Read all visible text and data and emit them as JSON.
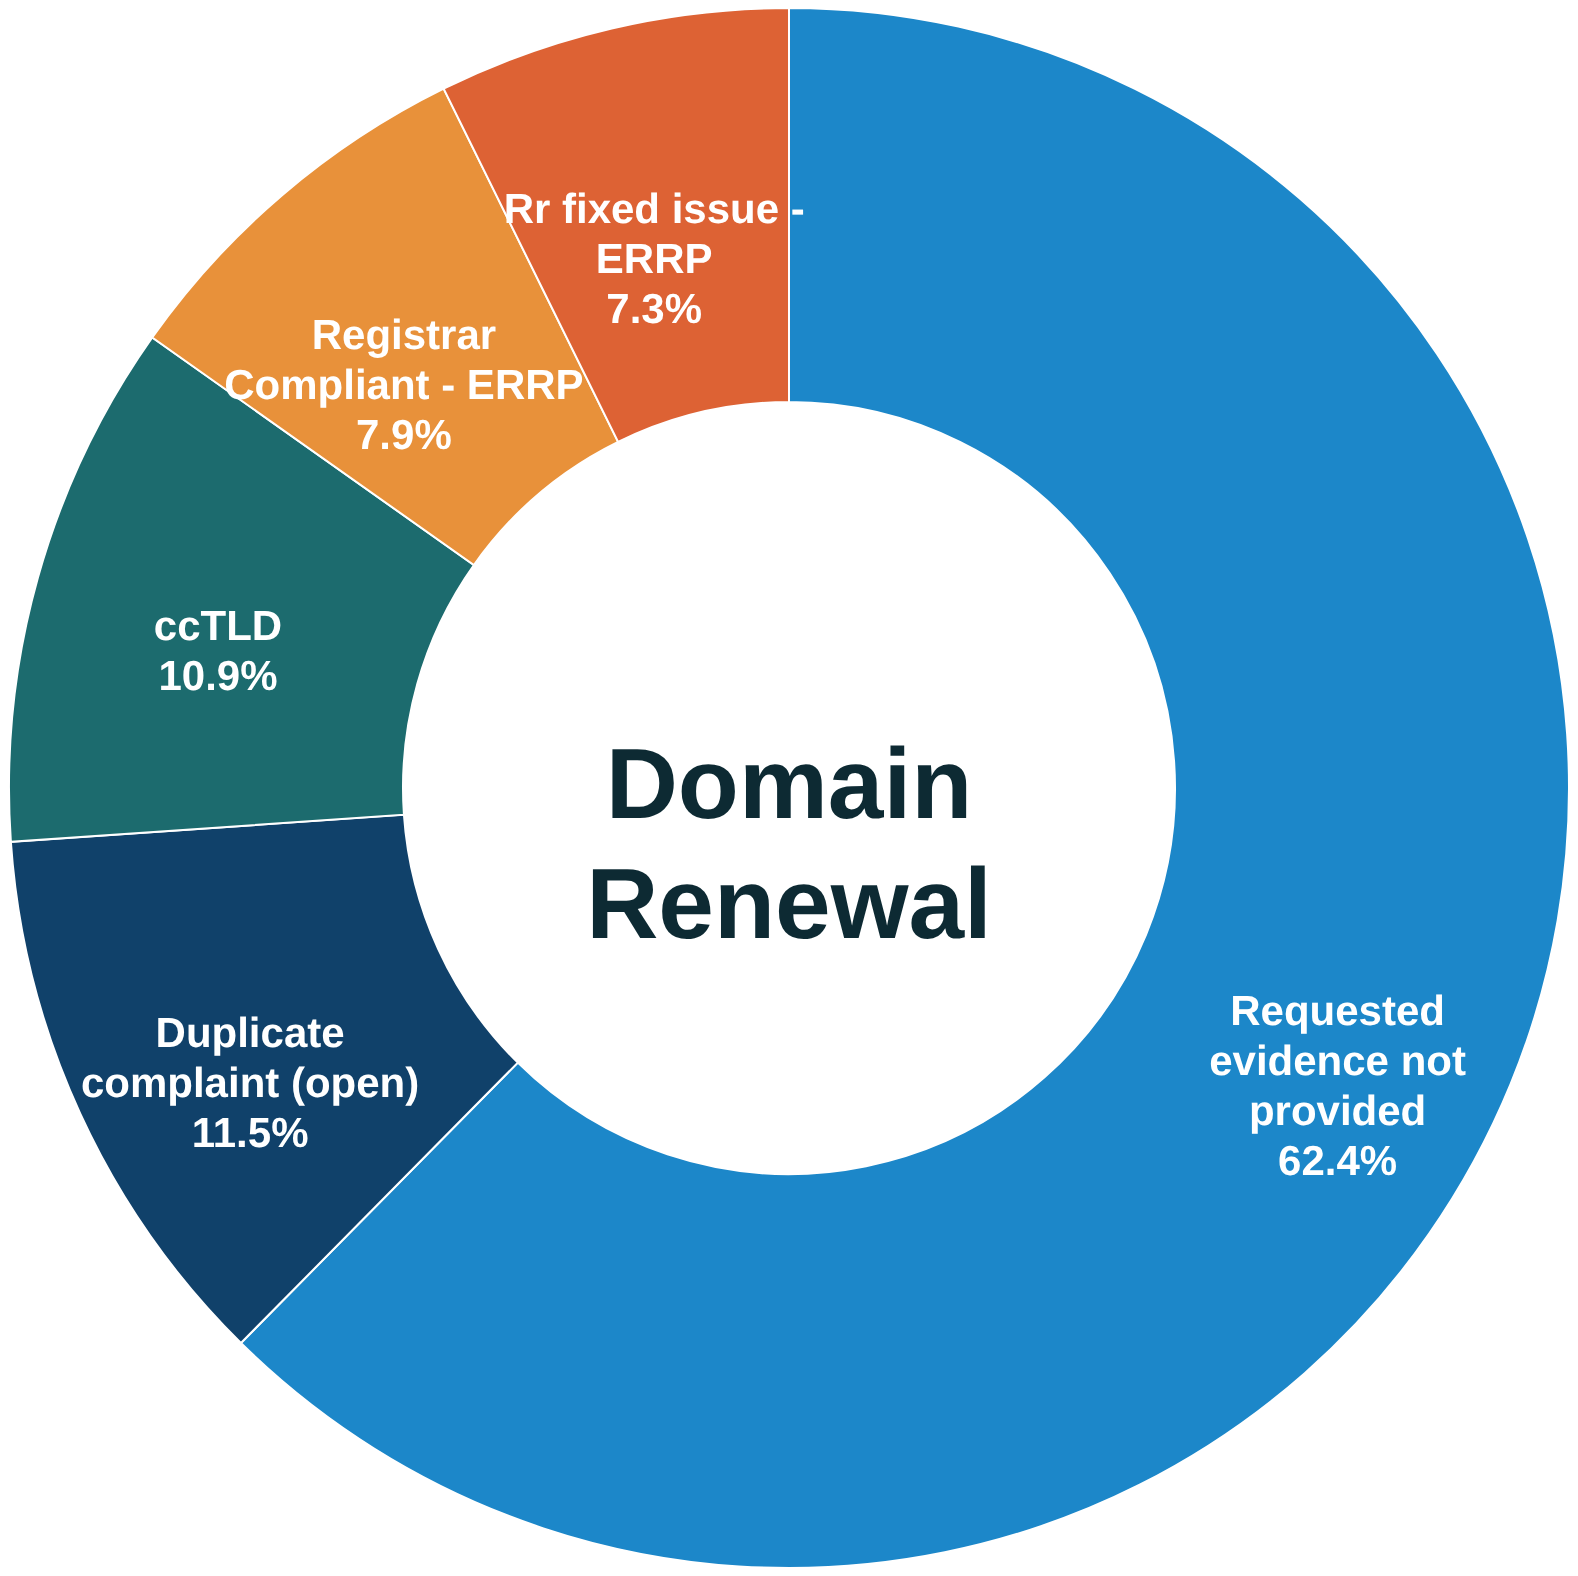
{
  "chart_data": {
    "type": "donut",
    "title": "Domain Renewal",
    "categories": [
      "Requested evidence not provided",
      "Duplicate complaint (open)",
      "ccTLD",
      "Registrar Compliant - ERRP",
      "Rr fixed issue - ERRP"
    ],
    "values": [
      62.4,
      11.5,
      10.9,
      7.9,
      7.3
    ],
    "colors": [
      "#1c87c9",
      "#10416a",
      "#1c6b6e",
      "#e8913a",
      "#dd6234"
    ],
    "value_labels": [
      "62.4%",
      "11.5%",
      "10.9%",
      "7.9%",
      "7.3%"
    ]
  }
}
